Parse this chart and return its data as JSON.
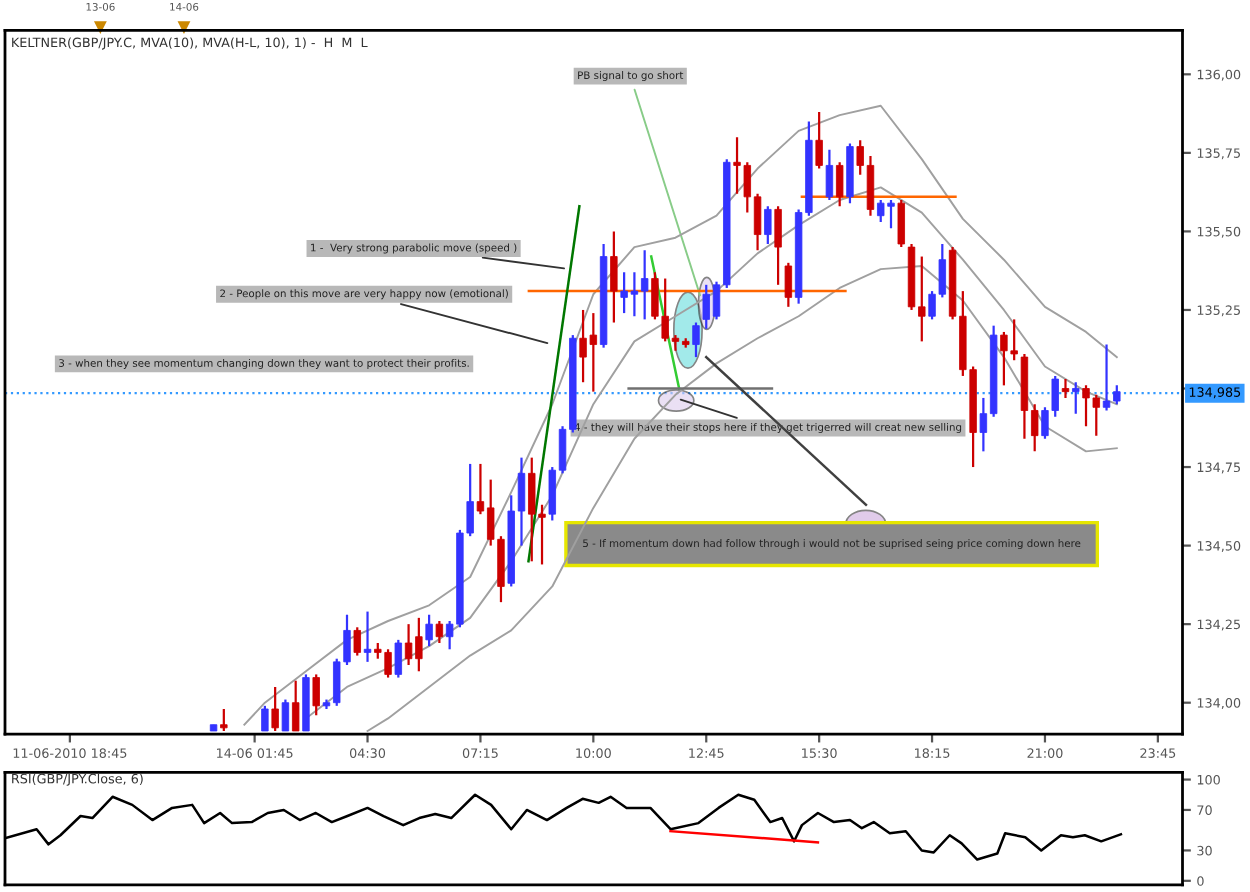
{
  "chart_data": [
    {
      "type": "candlestick",
      "title": "KELTNER(GBP/JPY.C, MVA(10), MVA(H-L, 10), 1) -  H  M  L",
      "x": [
        0.75,
        1.0,
        2.0,
        2.25,
        2.5,
        2.75,
        3.0,
        3.25,
        3.5,
        3.75,
        4.0,
        4.25,
        4.5,
        4.75,
        5.0,
        5.25,
        5.5,
        5.75,
        6.0,
        6.25,
        6.5,
        6.75,
        7.0,
        7.25,
        7.5,
        7.75,
        8.0,
        8.25,
        8.5,
        8.75,
        9.0,
        9.25,
        9.5,
        9.75,
        10.0,
        10.25,
        10.5,
        10.75,
        11.0,
        11.25,
        11.5,
        11.75,
        12.0,
        12.25,
        12.5,
        12.75,
        13.0,
        13.25,
        13.5,
        13.75,
        14.0,
        14.25,
        14.5,
        14.75,
        15.0,
        15.25,
        15.5,
        15.75,
        16.0,
        16.25,
        16.5,
        16.75,
        17.0,
        17.25,
        17.5,
        17.75,
        18.0,
        18.25,
        18.5,
        18.75,
        19.0,
        19.25,
        19.5,
        19.75,
        20.0,
        20.25,
        20.5,
        20.75,
        21.0,
        21.25,
        21.5,
        21.75,
        22.0,
        22.25,
        22.5,
        22.75
      ],
      "ohlc": [
        [
          133.91,
          133.93,
          133.91,
          133.93
        ],
        [
          133.93,
          133.98,
          133.91,
          133.92
        ],
        [
          133.91,
          133.99,
          133.91,
          133.98
        ],
        [
          133.98,
          134.05,
          133.91,
          133.92
        ],
        [
          133.91,
          134.01,
          133.91,
          134.0
        ],
        [
          134.0,
          134.07,
          133.91,
          133.91
        ],
        [
          133.91,
          134.09,
          133.91,
          134.08
        ],
        [
          134.08,
          134.09,
          133.96,
          133.99
        ],
        [
          133.99,
          134.01,
          133.98,
          134.0
        ],
        [
          134.0,
          134.14,
          133.99,
          134.13
        ],
        [
          134.13,
          134.28,
          134.12,
          134.23
        ],
        [
          134.23,
          134.24,
          134.15,
          134.16
        ],
        [
          134.16,
          134.29,
          134.13,
          134.17
        ],
        [
          134.17,
          134.19,
          134.14,
          134.16
        ],
        [
          134.16,
          134.17,
          134.08,
          134.09
        ],
        [
          134.09,
          134.2,
          134.08,
          134.19
        ],
        [
          134.19,
          134.25,
          134.12,
          134.14
        ],
        [
          134.21,
          134.27,
          134.1,
          134.14
        ],
        [
          134.2,
          134.28,
          134.18,
          134.25
        ],
        [
          134.25,
          134.26,
          134.19,
          134.21
        ],
        [
          134.21,
          134.26,
          134.17,
          134.25
        ],
        [
          134.25,
          134.55,
          134.24,
          134.54
        ],
        [
          134.54,
          134.76,
          134.53,
          134.64
        ],
        [
          134.64,
          134.76,
          134.6,
          134.61
        ],
        [
          134.62,
          134.71,
          134.5,
          134.52
        ],
        [
          134.52,
          134.53,
          134.32,
          134.37
        ],
        [
          134.38,
          134.66,
          134.37,
          134.61
        ],
        [
          134.61,
          134.78,
          134.5,
          134.73
        ],
        [
          134.73,
          134.78,
          134.45,
          134.6
        ],
        [
          134.6,
          134.63,
          134.44,
          134.59
        ],
        [
          134.6,
          134.75,
          134.58,
          134.74
        ],
        [
          134.74,
          134.88,
          134.73,
          134.87
        ],
        [
          134.87,
          135.17,
          134.86,
          135.16
        ],
        [
          135.16,
          135.25,
          135.02,
          135.1
        ],
        [
          135.17,
          135.24,
          134.99,
          135.14
        ],
        [
          135.14,
          135.46,
          135.13,
          135.42
        ],
        [
          135.42,
          135.5,
          135.21,
          135.31
        ],
        [
          135.29,
          135.37,
          135.24,
          135.31
        ],
        [
          135.3,
          135.37,
          135.23,
          135.31
        ],
        [
          135.31,
          135.44,
          135.22,
          135.35
        ],
        [
          135.35,
          135.37,
          135.22,
          135.23
        ],
        [
          135.23,
          135.35,
          135.15,
          135.16
        ],
        [
          135.16,
          135.17,
          135.12,
          135.15
        ],
        [
          135.15,
          135.16,
          135.13,
          135.14
        ],
        [
          135.14,
          135.21,
          135.1,
          135.2
        ],
        [
          135.22,
          135.33,
          135.19,
          135.3
        ],
        [
          135.23,
          135.34,
          135.22,
          135.33
        ],
        [
          135.33,
          135.73,
          135.32,
          135.72
        ],
        [
          135.72,
          135.8,
          135.62,
          135.71
        ],
        [
          135.71,
          135.72,
          135.56,
          135.61
        ],
        [
          135.61,
          135.62,
          135.44,
          135.49
        ],
        [
          135.49,
          135.58,
          135.46,
          135.57
        ],
        [
          135.57,
          135.58,
          135.33,
          135.45
        ],
        [
          135.39,
          135.4,
          135.26,
          135.29
        ],
        [
          135.29,
          135.57,
          135.27,
          135.56
        ],
        [
          135.56,
          135.85,
          135.55,
          135.79
        ],
        [
          135.79,
          135.88,
          135.7,
          135.71
        ],
        [
          135.61,
          135.76,
          135.6,
          135.71
        ],
        [
          135.71,
          135.72,
          135.58,
          135.61
        ],
        [
          135.61,
          135.78,
          135.59,
          135.77
        ],
        [
          135.77,
          135.79,
          135.68,
          135.71
        ],
        [
          135.71,
          135.74,
          135.55,
          135.57
        ],
        [
          135.55,
          135.6,
          135.53,
          135.59
        ],
        [
          135.58,
          135.6,
          135.51,
          135.59
        ],
        [
          135.59,
          135.6,
          135.45,
          135.46
        ],
        [
          135.45,
          135.46,
          135.25,
          135.26
        ],
        [
          135.26,
          135.42,
          135.15,
          135.23
        ],
        [
          135.23,
          135.31,
          135.22,
          135.3
        ],
        [
          135.3,
          135.46,
          135.29,
          135.41
        ],
        [
          135.44,
          135.45,
          135.22,
          135.23
        ],
        [
          135.23,
          135.31,
          135.04,
          135.06
        ],
        [
          135.06,
          135.07,
          134.75,
          134.86
        ],
        [
          134.86,
          134.97,
          134.8,
          134.92
        ],
        [
          134.92,
          135.2,
          134.91,
          135.17
        ],
        [
          135.17,
          135.18,
          135.01,
          135.12
        ],
        [
          135.12,
          135.22,
          135.09,
          135.11
        ],
        [
          135.1,
          135.11,
          134.84,
          134.93
        ],
        [
          134.93,
          134.95,
          134.8,
          134.85
        ],
        [
          134.85,
          134.94,
          134.84,
          134.93
        ],
        [
          134.93,
          135.04,
          134.91,
          135.03
        ],
        [
          135.0,
          135.03,
          134.97,
          134.99
        ],
        [
          134.99,
          135.02,
          134.92,
          135.0
        ],
        [
          135.0,
          135.01,
          134.88,
          134.97
        ],
        [
          134.97,
          134.98,
          134.85,
          134.94
        ],
        [
          134.94,
          135.14,
          134.93,
          134.96
        ],
        [
          134.96,
          135.01,
          134.95,
          134.99
        ]
      ],
      "colors": [
        "#3333ff",
        "#cc0000",
        "#3333ff",
        "#cc0000",
        "#3333ff",
        "#cc0000",
        "#3333ff",
        "#cc0000",
        "#3333ff",
        "#3333ff",
        "#3333ff",
        "#cc0000",
        "#3333ff",
        "#cc0000",
        "#cc0000",
        "#3333ff",
        "#cc0000",
        "#cc0000",
        "#3333ff",
        "#cc0000",
        "#3333ff",
        "#3333ff",
        "#3333ff",
        "#cc0000",
        "#cc0000",
        "#cc0000",
        "#3333ff",
        "#3333ff",
        "#cc0000",
        "#cc0000",
        "#3333ff",
        "#3333ff",
        "#3333ff",
        "#cc0000",
        "#cc0000",
        "#3333ff",
        "#cc0000",
        "#3333ff",
        "#3333ff",
        "#3333ff",
        "#cc0000",
        "#cc0000",
        "#cc0000",
        "#cc0000",
        "#3333ff",
        "#3333ff",
        "#3333ff",
        "#3333ff",
        "#cc0000",
        "#cc0000",
        "#cc0000",
        "#3333ff",
        "#cc0000",
        "#cc0000",
        "#3333ff",
        "#3333ff",
        "#cc0000",
        "#3333ff",
        "#cc0000",
        "#3333ff",
        "#cc0000",
        "#cc0000",
        "#3333ff",
        "#3333ff",
        "#cc0000",
        "#cc0000",
        "#cc0000",
        "#3333ff",
        "#3333ff",
        "#cc0000",
        "#cc0000",
        "#cc0000",
        "#3333ff",
        "#3333ff",
        "#cc0000",
        "#cc0000",
        "#cc0000",
        "#cc0000",
        "#3333ff",
        "#3333ff",
        "#cc0000",
        "#3333ff",
        "#cc0000",
        "#cc0000",
        "#3333ff",
        "#3333ff"
      ],
      "series": [
        {
          "type": "line",
          "color": "#a0a0a0",
          "x": [
            1.5,
            2,
            3,
            4,
            5,
            6,
            7,
            8,
            9,
            10,
            11,
            12,
            13,
            14,
            15,
            16,
            17,
            18,
            19,
            20,
            21,
            22,
            22.75
          ],
          "values": [
            133.93,
            134.0,
            134.1,
            134.2,
            134.26,
            134.31,
            134.4,
            134.67,
            134.95,
            135.3,
            135.45,
            135.48,
            135.55,
            135.7,
            135.82,
            135.87,
            135.9,
            135.73,
            135.54,
            135.41,
            135.26,
            135.18,
            135.1
          ]
        },
        {
          "type": "line",
          "color": "#a0a0a0",
          "x": [
            3,
            4,
            5,
            6,
            7,
            8,
            9,
            10,
            11,
            12,
            13,
            14,
            15,
            16,
            17,
            18,
            19,
            20,
            21,
            22,
            22.75
          ],
          "values": [
            133.95,
            134.05,
            134.11,
            134.18,
            134.27,
            134.45,
            134.66,
            134.95,
            135.15,
            135.23,
            135.31,
            135.43,
            135.52,
            135.6,
            135.64,
            135.56,
            135.41,
            135.25,
            135.07,
            134.99,
            134.95
          ]
        },
        {
          "type": "line",
          "color": "#a0a0a0",
          "x": [
            4.5,
            5,
            6,
            7,
            8,
            9,
            10,
            11,
            12,
            13,
            14,
            15,
            16,
            17,
            18,
            19,
            20,
            21,
            22,
            22.75
          ],
          "values": [
            133.91,
            133.95,
            134.05,
            134.15,
            134.23,
            134.37,
            134.62,
            134.84,
            134.98,
            135.08,
            135.16,
            135.23,
            135.32,
            135.38,
            135.39,
            135.28,
            135.1,
            134.88,
            134.8,
            134.81
          ]
        },
        {
          "type": "line",
          "color": "#ff6600",
          "x": [
            8.43,
            16.14
          ],
          "values": [
            135.31,
            135.31
          ]
        },
        {
          "type": "line",
          "color": "#ff6600",
          "x": [
            15.08,
            18.82
          ],
          "values": [
            135.61,
            135.61
          ]
        },
        {
          "type": "line",
          "color": "#007700",
          "x": [
            8.42,
            9.66
          ],
          "values": [
            134.45,
            135.58
          ]
        },
        {
          "type": "line",
          "color": "#33cc33",
          "x": [
            11.41,
            12.09
          ],
          "values": [
            135.42,
            135.0
          ]
        },
        {
          "type": "line",
          "color": "#707070",
          "x": [
            10.86,
            14.35
          ],
          "values": [
            135.0,
            135.0
          ]
        },
        {
          "type": "line",
          "color": "#404040",
          "x": [
            12.75,
            16.64
          ],
          "values": [
            135.1,
            134.63
          ]
        }
      ],
      "xlim": [
        -4.33,
        24.35
      ],
      "xticks": [
        {
          "value": -2.75,
          "label": "11-06-2010 18:45"
        },
        {
          "value": 1.75,
          "label": "14-06 01:45"
        },
        {
          "value": 4.5,
          "label": "04:30"
        },
        {
          "value": 7.25,
          "label": "07:15"
        },
        {
          "value": 10,
          "label": "10:00"
        },
        {
          "value": 12.75,
          "label": "12:45"
        },
        {
          "value": 15.5,
          "label": "15:30"
        },
        {
          "value": 18.25,
          "label": "18:15"
        },
        {
          "value": 21,
          "label": "21:00"
        },
        {
          "value": 23.75,
          "label": "23:45"
        }
      ],
      "ylim": [
        133.9,
        136.14
      ],
      "yticks": [
        {
          "value": 134,
          "label": "134,00"
        },
        {
          "value": 134.25,
          "label": "134,25"
        },
        {
          "value": 134.5,
          "label": "134,50"
        },
        {
          "value": 134.75,
          "label": "134,75"
        },
        {
          "value": 135,
          "label": null
        },
        {
          "value": 135.25,
          "label": "135,25"
        },
        {
          "value": 135.5,
          "label": "135,50"
        },
        {
          "value": 135.75,
          "label": "135,75"
        },
        {
          "value": 136,
          "label": "136,00"
        }
      ],
      "ref_lines": [
        {
          "axis": "y",
          "value": 134.985,
          "label": "134,985",
          "color": "#3399ff",
          "line_style": "dotted"
        }
      ],
      "annotations": [
        "13-06",
        "14-06",
        {
          "text": "PB signal to go short",
          "x": 12.64,
          "y": 135.28
        },
        {
          "text": "1 -  Very strong parabolic move (speed )",
          "x": 9.42,
          "y": 135.38
        },
        {
          "text": "2 - People on this move are very happy now (emotional)",
          "x": 9.01,
          "y": 135.14
        },
        "3 - when they see momentum changing down they want to protect their profits.",
        {
          "text": "4 - they will have their stops here if they get trigerred will creat new selling",
          "x": 12.0,
          "y": 134.97
        },
        "5 - If momentum down had follow through i would not be suprised seing price coming down here"
      ]
    },
    {
      "type": "line",
      "title": "RSI(GBP/JPY.Close, 6)",
      "series": [
        {
          "color": "#000000",
          "x": [
            -4.33,
            -3.56,
            -3.27,
            -2.98,
            -2.49,
            -2.2,
            -1.71,
            -1.23,
            -0.74,
            -0.26,
            0.23,
            0.52,
            0.91,
            1.2,
            1.68,
            2.07,
            2.46,
            2.85,
            3.24,
            3.63,
            4.01,
            4.5,
            4.89,
            5.37,
            5.76,
            6.15,
            6.54,
            7.12,
            7.51,
            8.0,
            8.38,
            8.87,
            9.35,
            9.74,
            10.13,
            10.42,
            10.81,
            11.39,
            11.88,
            12.56,
            13.05,
            13.53,
            13.92,
            14.31,
            14.6,
            14.89,
            15.08,
            15.47,
            15.86,
            16.25,
            16.54,
            16.83,
            17.22,
            17.61,
            18.0,
            18.29,
            18.68,
            18.97,
            19.35,
            19.84,
            20.03,
            20.52,
            20.91,
            21.39,
            21.68,
            21.97,
            22.37,
            22.85
          ],
          "values": [
            42,
            51,
            36,
            45,
            64,
            62,
            83,
            75,
            60,
            72,
            75,
            57,
            67,
            57,
            58,
            67,
            70,
            60,
            67,
            58,
            64,
            72,
            64,
            55,
            62,
            66,
            62,
            85,
            75,
            51,
            70,
            60,
            72,
            81,
            77,
            83,
            72,
            72,
            51,
            57,
            72,
            85,
            80,
            58,
            62,
            39,
            55,
            67,
            58,
            60,
            52,
            58,
            47,
            49,
            30,
            28,
            45,
            37,
            21,
            27,
            47,
            43,
            30,
            45,
            43,
            45,
            39,
            46
          ]
        },
        {
          "color": "#ff0000",
          "x": [
            11.88,
            15.47
          ],
          "values": [
            49,
            38
          ]
        }
      ],
      "xlim": [
        -4.33,
        24.35
      ],
      "ylim": [
        -4,
        107
      ],
      "yticks": [
        0,
        30,
        70,
        100
      ],
      "tick_labels": "y"
    }
  ]
}
